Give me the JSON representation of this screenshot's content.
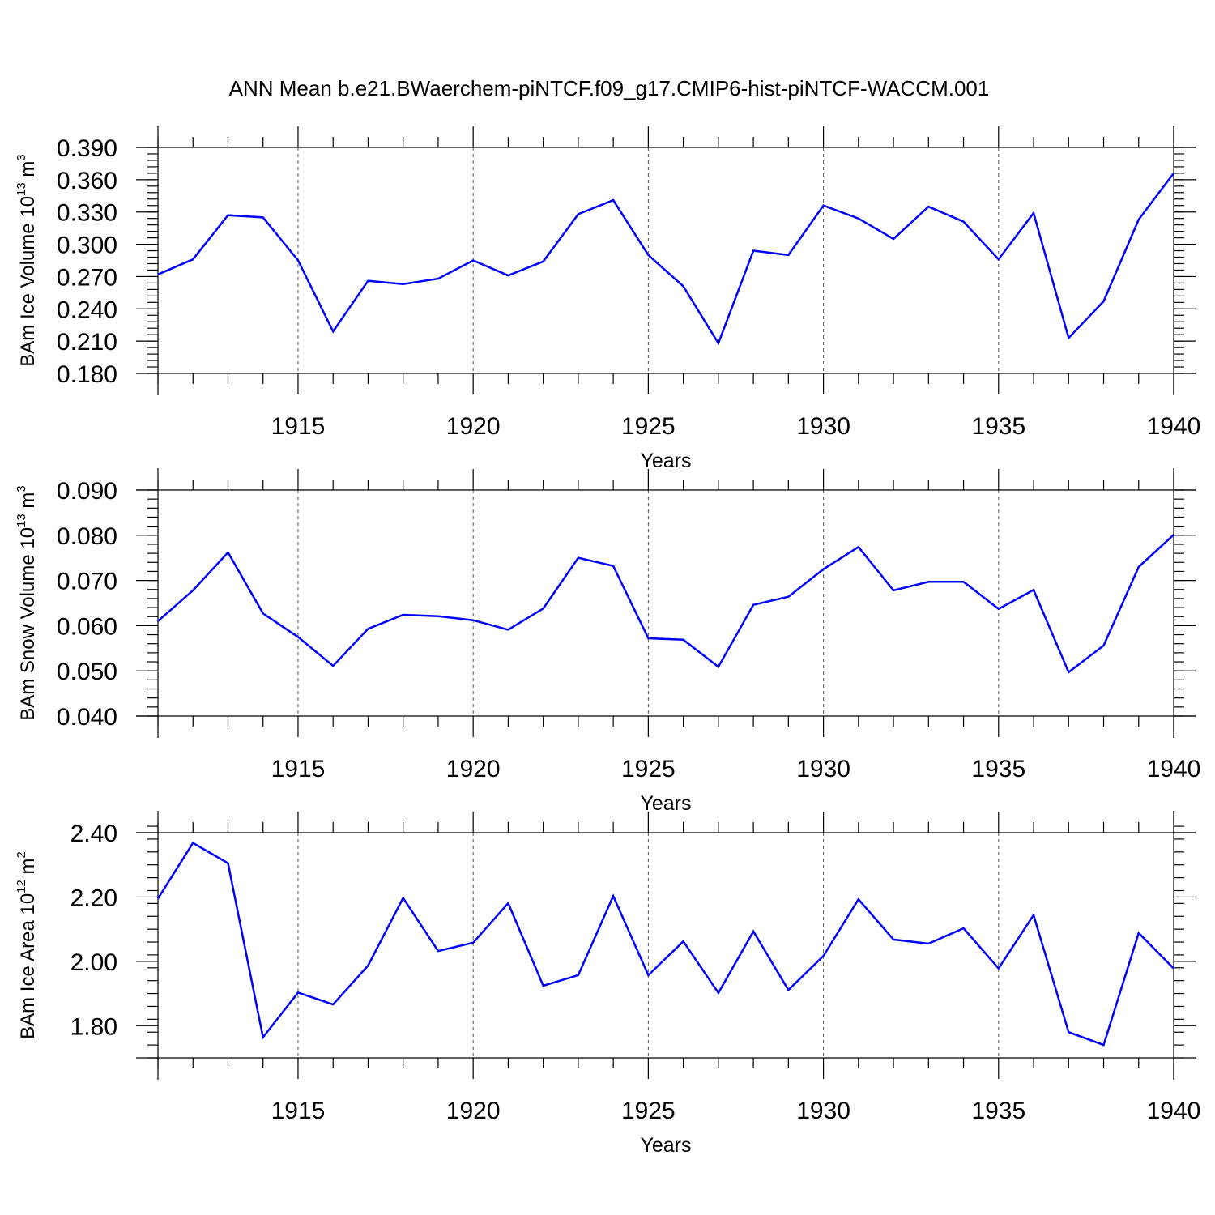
{
  "figure": {
    "title": "ANN Mean b.e21.BWaerchem-piNTCF.f09_g17.CMIP6-hist-piNTCF-WACCM.001"
  },
  "colors": {
    "line": "#0000ff",
    "grid": "#555555",
    "axis": "#000000"
  },
  "chart_data": [
    {
      "type": "line",
      "id": "ice-volume",
      "ylabel_main": "BAm Ice Volume 10",
      "ylabel_exp": "13",
      "ylabel_unit": " m",
      "ylabel_unit_exp": "3",
      "xlabel": "Years",
      "xlim": [
        1911,
        1940
      ],
      "ylim": [
        0.18,
        0.39
      ],
      "yticks": [
        0.18,
        0.21,
        0.24,
        0.27,
        0.3,
        0.33,
        0.36,
        0.39
      ],
      "ytick_labels": [
        "0.180",
        "0.210",
        "0.240",
        "0.270",
        "0.300",
        "0.330",
        "0.360",
        "0.390"
      ],
      "yminor_step": 0.006,
      "xticks": [
        1915,
        1920,
        1925,
        1930,
        1935,
        1940
      ],
      "xtick_labels": [
        "1915",
        "1920",
        "1925",
        "1930",
        "1935",
        "1940"
      ],
      "grid": "vertical-dashed",
      "series": [
        {
          "name": "BAm Ice Volume",
          "x": [
            1911,
            1912,
            1913,
            1914,
            1915,
            1916,
            1917,
            1918,
            1919,
            1920,
            1921,
            1922,
            1923,
            1924,
            1925,
            1926,
            1927,
            1928,
            1929,
            1930,
            1931,
            1932,
            1933,
            1934,
            1935,
            1936,
            1937,
            1938,
            1939,
            1940
          ],
          "values": [
            0.272,
            0.286,
            0.327,
            0.325,
            0.285,
            0.219,
            0.266,
            0.263,
            0.268,
            0.285,
            0.271,
            0.284,
            0.328,
            0.341,
            0.29,
            0.261,
            0.208,
            0.294,
            0.29,
            0.336,
            0.324,
            0.305,
            0.335,
            0.321,
            0.286,
            0.329,
            0.213,
            0.247,
            0.323,
            0.366
          ]
        }
      ]
    },
    {
      "type": "line",
      "id": "snow-volume",
      "ylabel_main": "BAm Snow Volume 10",
      "ylabel_exp": "13",
      "ylabel_unit": " m",
      "ylabel_unit_exp": "3",
      "xlabel": "Years",
      "xlim": [
        1911,
        1940
      ],
      "ylim": [
        0.04,
        0.09
      ],
      "yticks": [
        0.04,
        0.05,
        0.06,
        0.07,
        0.08,
        0.09
      ],
      "ytick_labels": [
        "0.040",
        "0.050",
        "0.060",
        "0.070",
        "0.080",
        "0.090"
      ],
      "yminor_step": 0.002,
      "xticks": [
        1915,
        1920,
        1925,
        1930,
        1935,
        1940
      ],
      "xtick_labels": [
        "1915",
        "1920",
        "1925",
        "1930",
        "1935",
        "1940"
      ],
      "grid": "vertical-dashed",
      "series": [
        {
          "name": "BAm Snow Volume",
          "x": [
            1911,
            1912,
            1913,
            1914,
            1915,
            1916,
            1917,
            1918,
            1919,
            1920,
            1921,
            1922,
            1923,
            1924,
            1925,
            1926,
            1927,
            1928,
            1929,
            1930,
            1931,
            1932,
            1933,
            1934,
            1935,
            1936,
            1937,
            1938,
            1939,
            1940
          ],
          "values": [
            0.061,
            0.0678,
            0.0762,
            0.0627,
            0.0575,
            0.0511,
            0.0593,
            0.0624,
            0.0621,
            0.0612,
            0.0591,
            0.0638,
            0.075,
            0.0732,
            0.0572,
            0.0569,
            0.0509,
            0.0646,
            0.0664,
            0.0725,
            0.0774,
            0.0678,
            0.0697,
            0.0697,
            0.0637,
            0.0679,
            0.0497,
            0.0556,
            0.073,
            0.0801
          ]
        }
      ]
    },
    {
      "type": "line",
      "id": "ice-area",
      "ylabel_main": "BAm Ice Area 10",
      "ylabel_exp": "12",
      "ylabel_unit": " m",
      "ylabel_unit_exp": "2",
      "xlabel": "Years",
      "xlim": [
        1911,
        1940
      ],
      "ylim": [
        1.7,
        2.4
      ],
      "yticks": [
        1.8,
        2.0,
        2.2,
        2.4
      ],
      "ytick_labels": [
        "1.80",
        "2.00",
        "2.20",
        "2.40"
      ],
      "yminor_step": 0.04,
      "xticks": [
        1915,
        1920,
        1925,
        1930,
        1935,
        1940
      ],
      "xtick_labels": [
        "1915",
        "1920",
        "1925",
        "1930",
        "1935",
        "1940"
      ],
      "grid": "vertical-dashed",
      "series": [
        {
          "name": "BAm Ice Area",
          "x": [
            1911,
            1912,
            1913,
            1914,
            1915,
            1916,
            1917,
            1918,
            1919,
            1920,
            1921,
            1922,
            1923,
            1924,
            1925,
            1926,
            1927,
            1928,
            1929,
            1930,
            1931,
            1932,
            1933,
            1934,
            1935,
            1936,
            1937,
            1938,
            1939,
            1940
          ],
          "values": [
            2.195,
            2.368,
            2.305,
            1.764,
            1.903,
            1.866,
            1.987,
            2.197,
            2.032,
            2.058,
            2.181,
            1.924,
            1.957,
            2.203,
            1.957,
            2.062,
            1.902,
            2.093,
            1.911,
            2.017,
            2.193,
            2.068,
            2.055,
            2.103,
            1.978,
            2.144,
            1.78,
            1.74,
            2.088,
            1.978
          ]
        }
      ]
    }
  ]
}
